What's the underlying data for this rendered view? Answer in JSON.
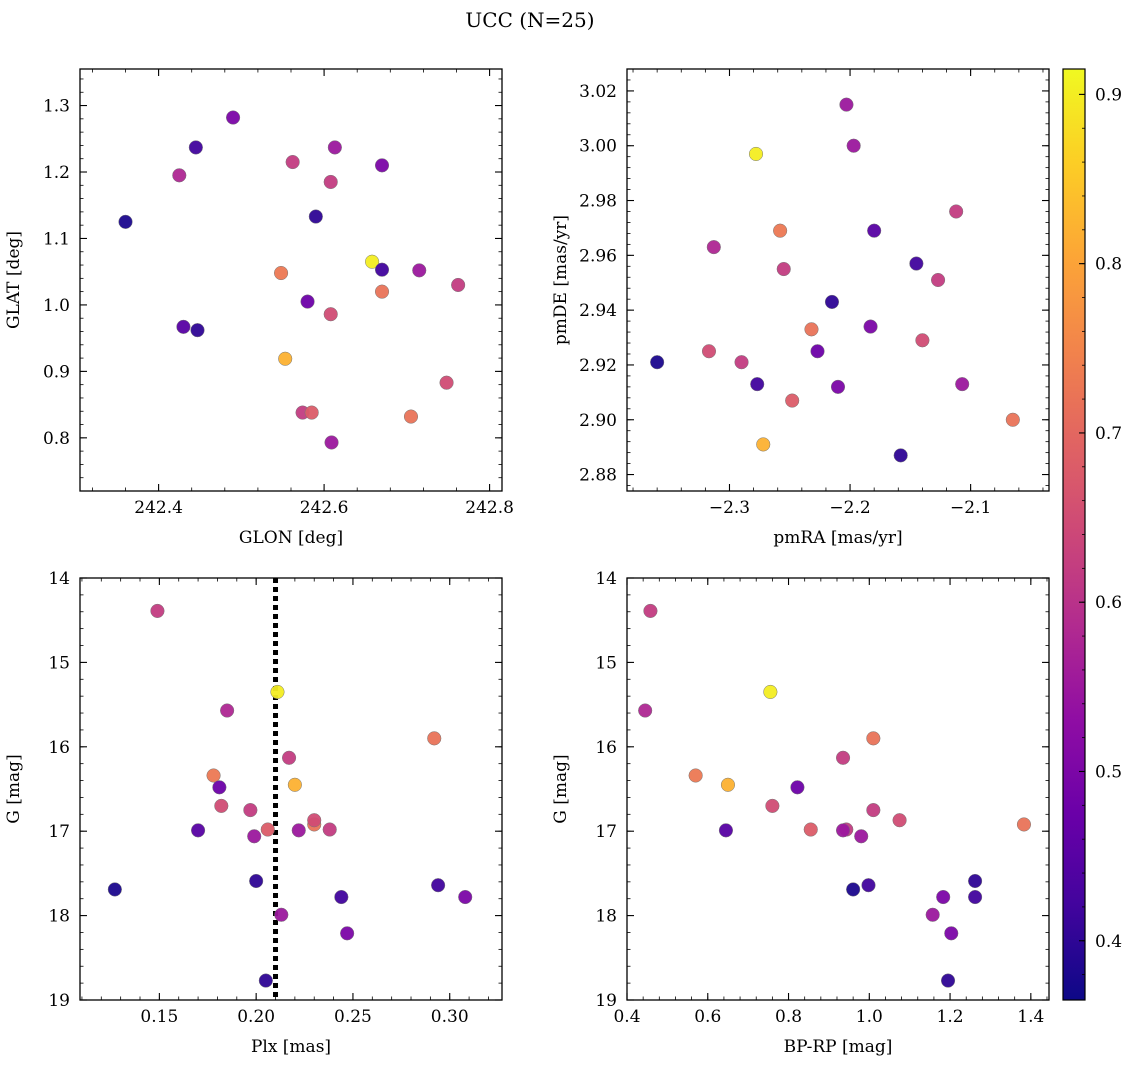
{
  "title": "UCC (N=25)",
  "colorbar": {
    "range": [
      0.365,
      0.915
    ],
    "ticks": [
      0.4,
      0.5,
      0.6,
      0.7,
      0.8,
      0.9
    ],
    "ticklabels": [
      "0.4",
      "0.5",
      "0.6",
      "0.7",
      "0.8",
      "0.9"
    ],
    "colormap": "plasma"
  },
  "chart_data": [
    {
      "type": "scatter",
      "xlabel": "GLON [deg]",
      "ylabel": "GLAT [deg]",
      "xlim": [
        242.305,
        242.815
      ],
      "ylim": [
        0.72,
        1.355
      ],
      "xticks": [
        242.4,
        242.6,
        242.8
      ],
      "xticklabels": [
        "242.4",
        "242.6",
        "242.8"
      ],
      "yticks": [
        0.8,
        0.9,
        1.0,
        1.1,
        1.2,
        1.3
      ],
      "yticklabels": [
        "0.8",
        "0.9",
        "1.0",
        "1.1",
        "1.2",
        "1.3"
      ],
      "invert_y": false,
      "grid": false
    },
    {
      "type": "scatter",
      "xlabel": "pmRA [mas/yr]",
      "ylabel": "pmDE [mas/yr]",
      "xlim": [
        -2.385,
        -2.035
      ],
      "ylim": [
        2.874,
        3.028
      ],
      "xticks": [
        -2.3,
        -2.2,
        -2.1
      ],
      "xticklabels": [
        "−2.3",
        "−2.2",
        "−2.1"
      ],
      "yticks": [
        2.88,
        2.9,
        2.92,
        2.94,
        2.96,
        2.98,
        3.0,
        3.02
      ],
      "yticklabels": [
        "2.88",
        "2.90",
        "2.92",
        "2.94",
        "2.96",
        "2.98",
        "3.00",
        "3.02"
      ],
      "invert_y": false,
      "grid": false
    },
    {
      "type": "scatter",
      "xlabel": "Plx [mas]",
      "ylabel": "G [mag]",
      "xlim": [
        0.109,
        0.327
      ],
      "ylim": [
        14.0,
        19.0
      ],
      "xticks": [
        0.15,
        0.2,
        0.25,
        0.3
      ],
      "xticklabels": [
        "0.15",
        "0.20",
        "0.25",
        "0.30"
      ],
      "yticks": [
        14,
        15,
        16,
        17,
        18,
        19
      ],
      "yticklabels": [
        "14",
        "15",
        "16",
        "17",
        "18",
        "19"
      ],
      "invert_y": true,
      "grid": false,
      "vline": 0.21
    },
    {
      "type": "scatter",
      "xlabel": "BP-RP [mag]",
      "ylabel": "G [mag]",
      "xlim": [
        0.4,
        1.445
      ],
      "ylim": [
        14.0,
        19.0
      ],
      "xticks": [
        0.4,
        0.6,
        0.8,
        1.0,
        1.2,
        1.4
      ],
      "xticklabels": [
        "0.4",
        "0.6",
        "0.8",
        "1.0",
        "1.2",
        "1.4"
      ],
      "yticks": [
        14,
        15,
        16,
        17,
        18,
        19
      ],
      "yticklabels": [
        "14",
        "15",
        "16",
        "17",
        "18",
        "19"
      ],
      "invert_y": true,
      "grid": false
    }
  ],
  "stars": [
    {
      "glon": 242.36,
      "glat": 1.125,
      "pmra": -2.36,
      "pmde": 2.921,
      "plx": 0.127,
      "g": 17.69,
      "bprp": 0.96,
      "c": 0.38
    },
    {
      "glon": 242.425,
      "glat": 1.195,
      "pmra": -2.313,
      "pmde": 2.963,
      "plx": 0.185,
      "g": 15.57,
      "bprp": 0.445,
      "c": 0.58
    },
    {
      "glon": 242.445,
      "glat": 1.237,
      "pmra": -2.145,
      "pmde": 2.957,
      "plx": 0.294,
      "g": 17.64,
      "bprp": 0.998,
      "c": 0.42
    },
    {
      "glon": 242.49,
      "glat": 1.282,
      "pmra": -2.183,
      "pmde": 2.934,
      "plx": 0.247,
      "g": 18.21,
      "bprp": 1.203,
      "c": 0.5
    },
    {
      "glon": 242.562,
      "glat": 1.215,
      "pmra": -2.112,
      "pmde": 2.976,
      "plx": 0.149,
      "g": 14.39,
      "bprp": 0.458,
      "c": 0.62
    },
    {
      "glon": 242.613,
      "glat": 1.237,
      "pmra": -2.197,
      "pmde": 3.0,
      "plx": 0.213,
      "g": 17.99,
      "bprp": 1.157,
      "c": 0.55
    },
    {
      "glon": 242.67,
      "glat": 1.21,
      "pmra": -2.21,
      "pmde": 2.912,
      "plx": 0.308,
      "g": 17.78,
      "bprp": 1.183,
      "c": 0.5
    },
    {
      "glon": 242.608,
      "glat": 1.185,
      "pmra": -2.127,
      "pmde": 2.951,
      "plx": 0.217,
      "g": 16.13,
      "bprp": 0.935,
      "c": 0.62
    },
    {
      "glon": 242.59,
      "glat": 1.133,
      "pmra": -2.215,
      "pmde": 2.943,
      "plx": 0.2,
      "g": 17.59,
      "bprp": 1.262,
      "c": 0.4
    },
    {
      "glon": 242.658,
      "glat": 1.065,
      "pmra": -2.278,
      "pmde": 2.997,
      "plx": 0.211,
      "g": 15.35,
      "bprp": 0.755,
      "c": 0.9
    },
    {
      "glon": 242.67,
      "glat": 1.053,
      "pmra": -2.277,
      "pmde": 2.913,
      "plx": 0.244,
      "g": 17.78,
      "bprp": 1.262,
      "c": 0.42
    },
    {
      "glon": 242.715,
      "glat": 1.052,
      "pmra": -2.107,
      "pmde": 2.913,
      "plx": 0.199,
      "g": 17.06,
      "bprp": 0.98,
      "c": 0.55
    },
    {
      "glon": 242.548,
      "glat": 1.048,
      "pmra": -2.258,
      "pmde": 2.969,
      "plx": 0.178,
      "g": 16.34,
      "bprp": 0.57,
      "c": 0.73
    },
    {
      "glon": 242.762,
      "glat": 1.03,
      "pmra": -2.255,
      "pmde": 2.955,
      "plx": 0.238,
      "g": 16.98,
      "bprp": 0.943,
      "c": 0.62
    },
    {
      "glon": 242.67,
      "glat": 1.02,
      "pmra": -2.232,
      "pmde": 2.933,
      "plx": 0.23,
      "g": 16.92,
      "bprp": 1.383,
      "c": 0.72
    },
    {
      "glon": 242.58,
      "glat": 1.005,
      "pmra": -2.227,
      "pmde": 2.925,
      "plx": 0.181,
      "g": 16.48,
      "bprp": 0.822,
      "c": 0.48
    },
    {
      "glon": 242.608,
      "glat": 0.986,
      "pmra": -2.14,
      "pmde": 2.929,
      "plx": 0.23,
      "g": 16.87,
      "bprp": 1.075,
      "c": 0.65
    },
    {
      "glon": 242.43,
      "glat": 0.967,
      "pmra": -2.18,
      "pmde": 2.969,
      "plx": 0.17,
      "g": 16.99,
      "bprp": 0.645,
      "c": 0.45
    },
    {
      "glon": 242.447,
      "glat": 0.962,
      "pmra": -2.158,
      "pmde": 2.887,
      "plx": 0.205,
      "g": 18.77,
      "bprp": 1.195,
      "c": 0.4
    },
    {
      "glon": 242.553,
      "glat": 0.919,
      "pmra": -2.272,
      "pmde": 2.891,
      "plx": 0.22,
      "g": 16.45,
      "bprp": 0.65,
      "c": 0.82
    },
    {
      "glon": 242.748,
      "glat": 0.883,
      "pmra": -2.317,
      "pmde": 2.925,
      "plx": 0.182,
      "g": 16.7,
      "bprp": 0.76,
      "c": 0.65
    },
    {
      "glon": 242.574,
      "glat": 0.838,
      "pmra": -2.29,
      "pmde": 2.921,
      "plx": 0.197,
      "g": 16.75,
      "bprp": 1.01,
      "c": 0.62
    },
    {
      "glon": 242.585,
      "glat": 0.838,
      "pmra": -2.248,
      "pmde": 2.907,
      "plx": 0.206,
      "g": 16.98,
      "bprp": 0.855,
      "c": 0.68
    },
    {
      "glon": 242.705,
      "glat": 0.832,
      "pmra": -2.065,
      "pmde": 2.9,
      "plx": 0.292,
      "g": 15.9,
      "bprp": 1.01,
      "c": 0.72
    },
    {
      "glon": 242.609,
      "glat": 0.793,
      "pmra": -2.203,
      "pmde": 3.015,
      "plx": 0.222,
      "g": 16.99,
      "bprp": 0.935,
      "c": 0.55
    }
  ]
}
